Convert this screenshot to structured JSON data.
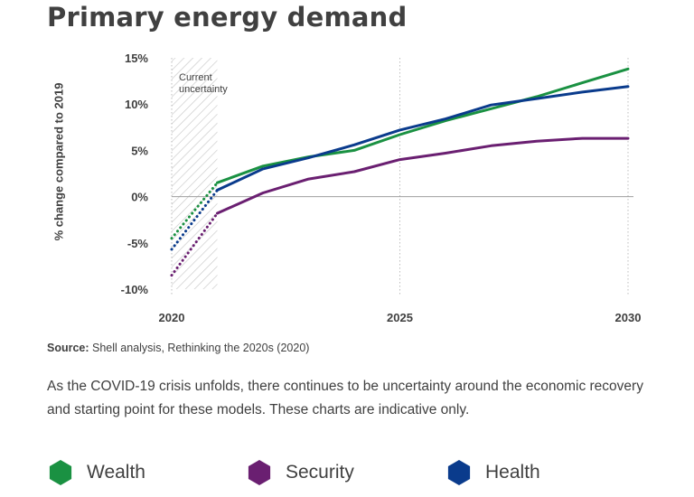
{
  "title": "Primary energy demand",
  "source_label": "Source:",
  "source_text": " Shell analysis, Rethinking the 2020s (2020)",
  "description": "As the COVID-19 crisis unfolds, there continues to be uncertainty around the economic recovery and starting point for these models. These charts are indicative only.",
  "chart_data": {
    "type": "line",
    "title": "Primary energy demand",
    "ylabel": "% change compared to 2019",
    "xlabel": "",
    "xlim": [
      2020,
      2030
    ],
    "ylim": [
      -10,
      15
    ],
    "x_ticks": [
      2020,
      2025,
      2030
    ],
    "x_tick_labels": [
      "2020",
      "2025",
      "2030"
    ],
    "y_ticks": [
      -10,
      -5,
      0,
      5,
      10,
      15
    ],
    "y_tick_labels": [
      "-10%",
      "-5%",
      "0%",
      "5%",
      "10%",
      "15%"
    ],
    "grid": "vertical dotted",
    "uncertainty_band": {
      "x_range": [
        2020,
        2021
      ],
      "label": "Current uncertainty",
      "label_lines": [
        "Current",
        "uncertainty"
      ]
    },
    "series": [
      {
        "name": "Wealth",
        "color": "#1a9142",
        "projected_start": {
          "x": 2020,
          "y": -4.5
        },
        "x": [
          2021,
          2022,
          2023,
          2024,
          2025,
          2026,
          2027,
          2028,
          2029,
          2030
        ],
        "y": [
          1.5,
          3.3,
          4.3,
          5.0,
          6.7,
          8.2,
          9.5,
          10.8,
          12.3,
          13.8
        ]
      },
      {
        "name": "Security",
        "color": "#6a1f71",
        "projected_start": {
          "x": 2020,
          "y": -8.5
        },
        "x": [
          2021,
          2022,
          2023,
          2024,
          2025,
          2026,
          2027,
          2028,
          2029,
          2030
        ],
        "y": [
          -1.8,
          0.4,
          1.9,
          2.7,
          4.0,
          4.7,
          5.5,
          6.0,
          6.3,
          6.3
        ]
      },
      {
        "name": "Health",
        "color": "#0a3b8c",
        "projected_start": {
          "x": 2020,
          "y": -5.7
        },
        "x": [
          2021,
          2022,
          2023,
          2024,
          2025,
          2026,
          2027,
          2028,
          2029,
          2030
        ],
        "y": [
          0.7,
          3.0,
          4.2,
          5.6,
          7.2,
          8.4,
          9.9,
          10.6,
          11.3,
          11.9
        ]
      }
    ]
  },
  "legend": [
    {
      "name": "Wealth",
      "color": "#1a9142",
      "icon": "hexagon-icon"
    },
    {
      "name": "Security",
      "color": "#6a1f71",
      "icon": "hexagon-icon"
    },
    {
      "name": "Health",
      "color": "#0a3b8c",
      "icon": "hexagon-icon"
    }
  ]
}
